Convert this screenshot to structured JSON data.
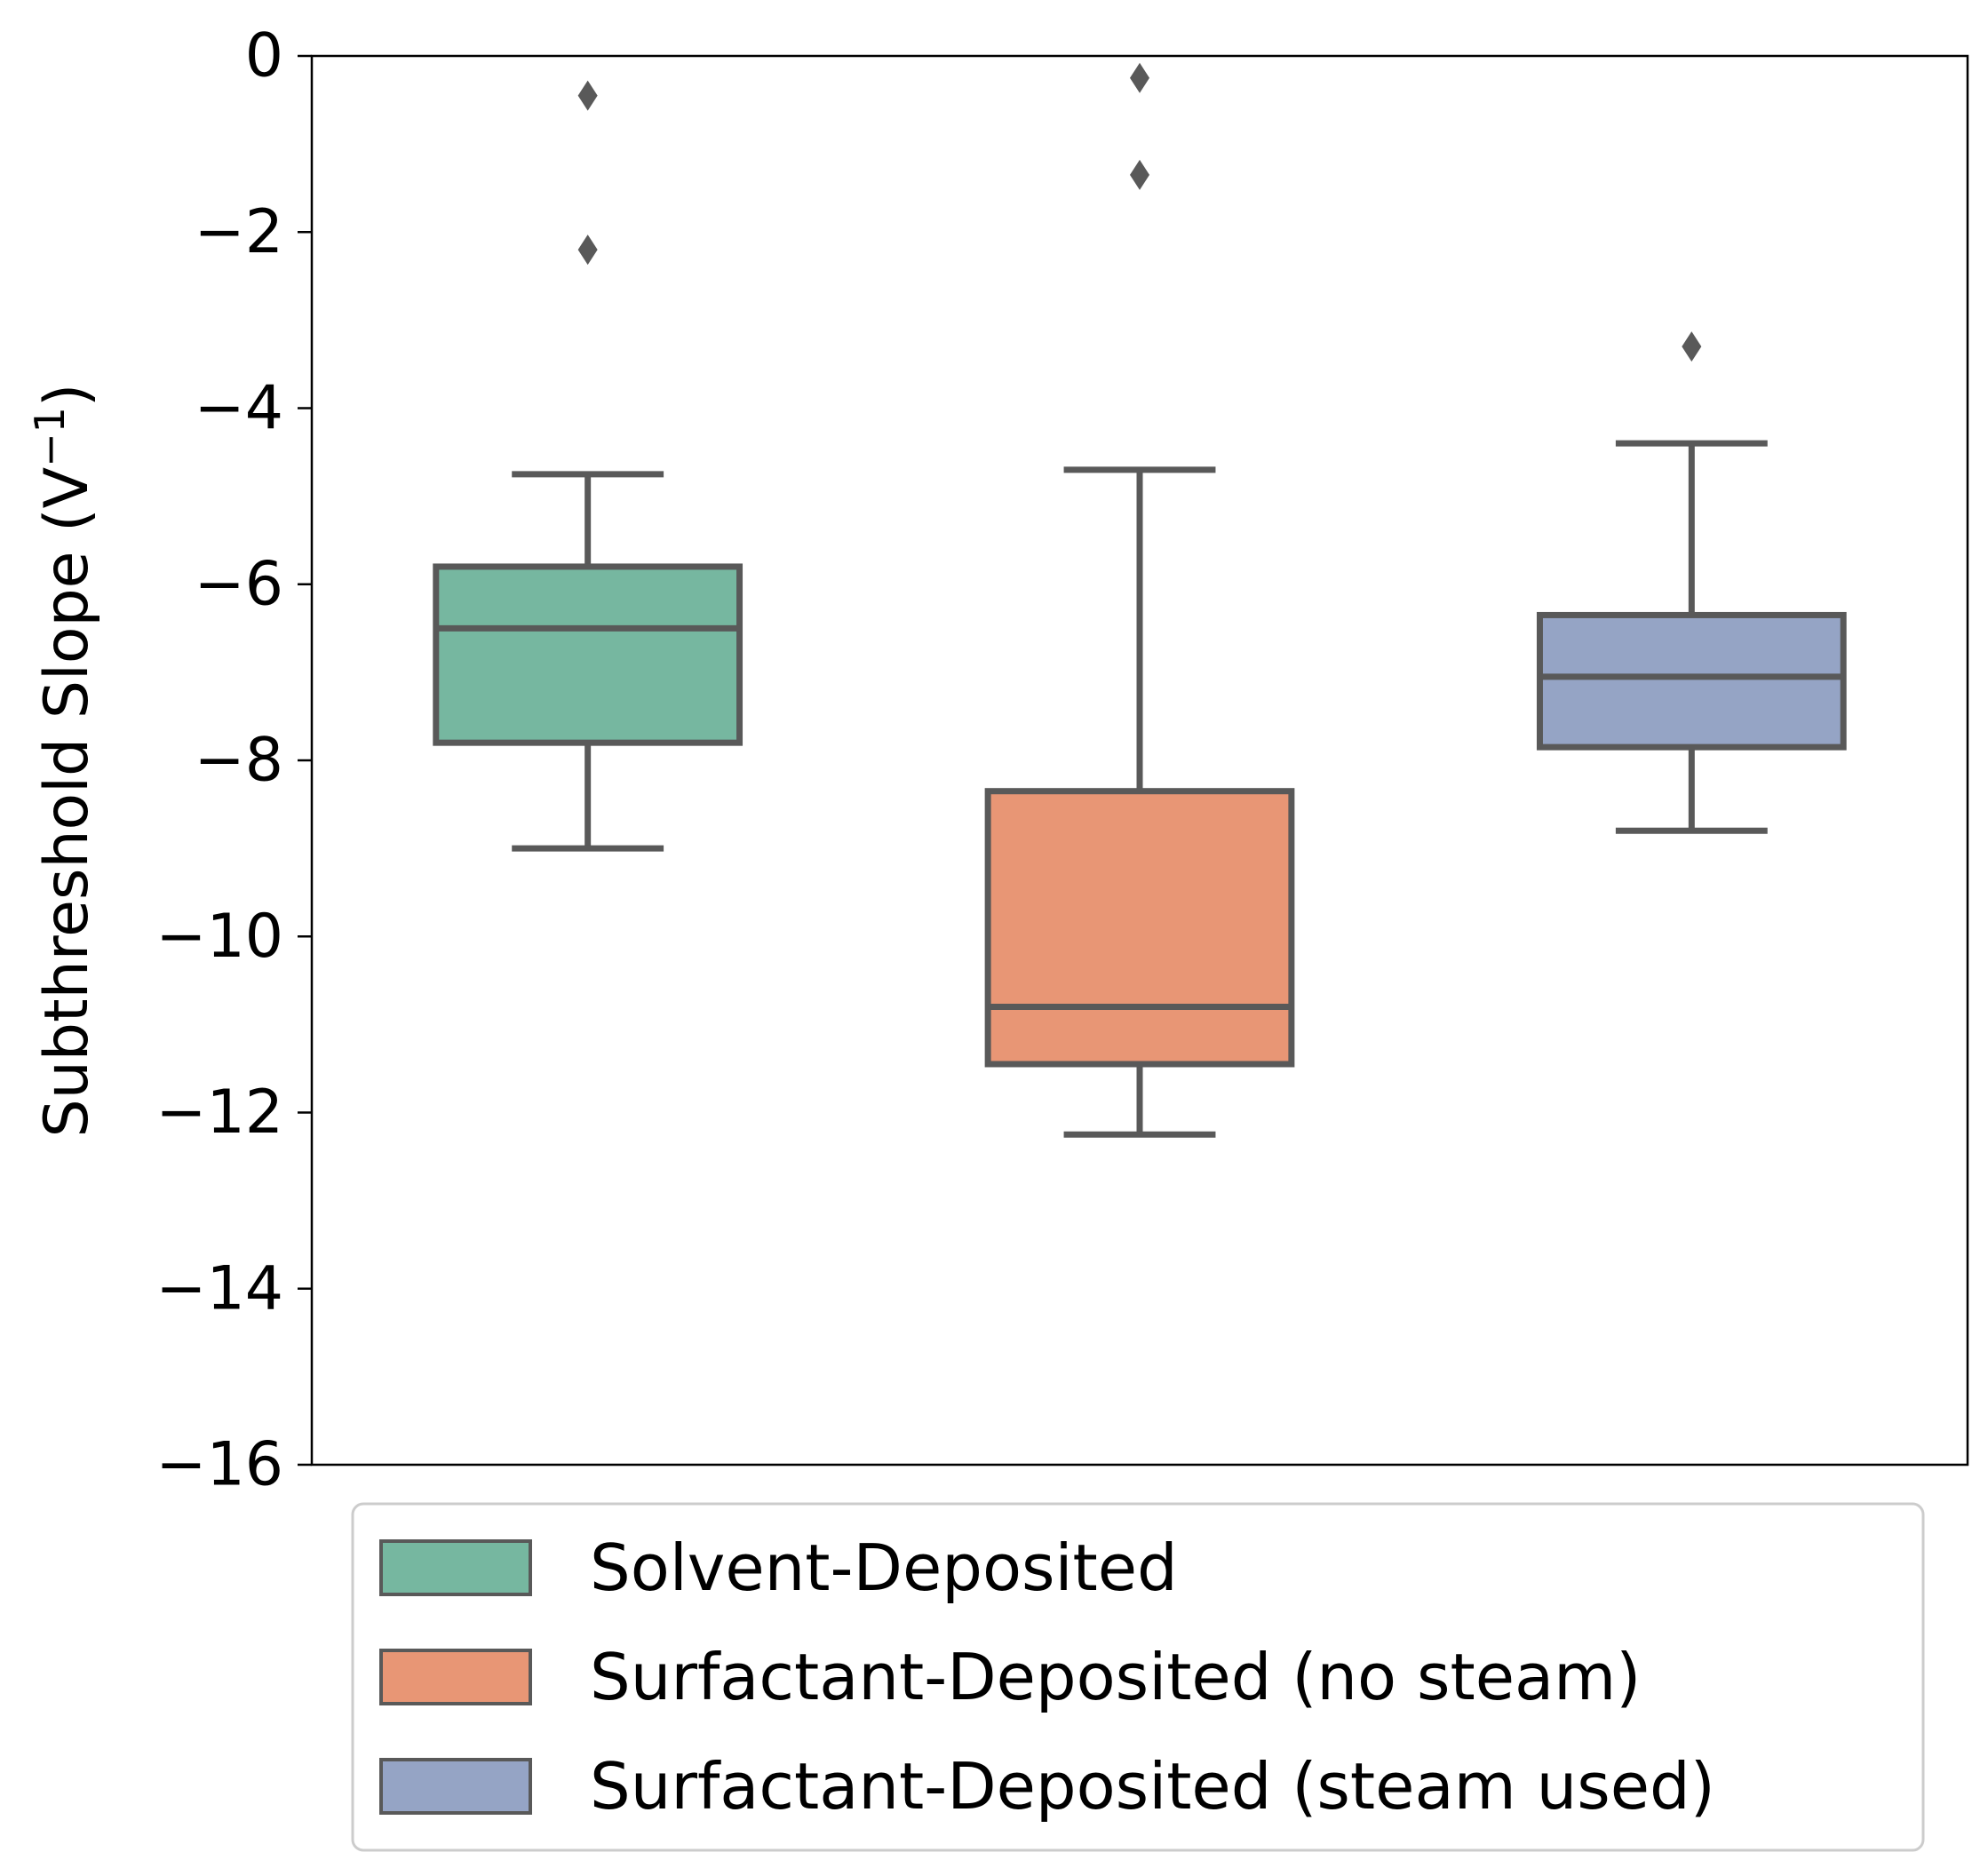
{
  "chart_data": {
    "type": "box",
    "ylabel": "Subthreshold Slope (V",
    "ylabel_sup": "−1",
    "ylabel_close": ")",
    "ylim": [
      -16,
      0
    ],
    "yticks": [
      0,
      -2,
      -4,
      -6,
      -8,
      -10,
      -12,
      -14,
      -16
    ],
    "ytick_labels": [
      "0",
      "−2",
      "−4",
      "−6",
      "−8",
      "−10",
      "−12",
      "−14",
      "−16"
    ],
    "grid": false,
    "legend_position": "below plot",
    "series": [
      {
        "name": "Solvent-Deposited",
        "color": "#76b7a0",
        "whisker_high": -4.75,
        "q3": -5.8,
        "median": -6.5,
        "q1": -7.8,
        "whisker_low": -9.0,
        "outliers": [
          -0.45,
          -2.2
        ]
      },
      {
        "name": "Surfactant-Deposited (no steam)",
        "color": "#e89675",
        "whisker_high": -4.7,
        "q3": -8.35,
        "median": -10.8,
        "q1": -11.45,
        "whisker_low": -12.25,
        "outliers": [
          -0.25,
          -1.35
        ]
      },
      {
        "name": "Surfactant-Deposited (steam used)",
        "color": "#95a4c5",
        "whisker_high": -4.4,
        "q3": -6.35,
        "median": -7.05,
        "q1": -7.85,
        "whisker_low": -8.8,
        "outliers": [
          -3.3
        ]
      }
    ]
  },
  "style": {
    "line_color": "#595959",
    "axis_color": "#000000",
    "legend_border_color": "#cccccc"
  }
}
